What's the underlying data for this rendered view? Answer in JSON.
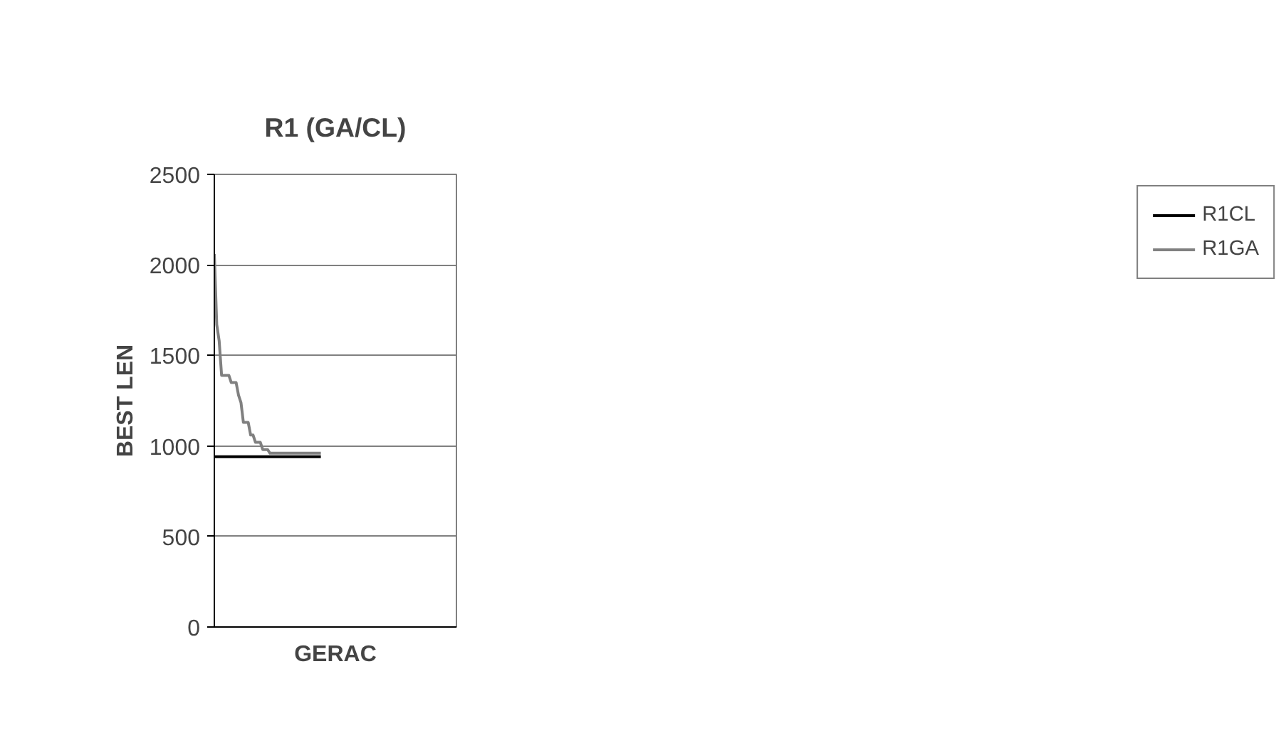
{
  "chart_data": {
    "type": "line",
    "title": "R1 (GA/CL)",
    "xlabel": "GERAC",
    "ylabel": "BEST LEN",
    "categories": [
      null,
      null,
      null,
      null,
      null,
      null,
      null,
      null,
      null,
      null,
      null,
      null,
      null,
      null,
      null,
      null,
      null,
      null,
      null,
      null,
      null,
      null,
      null,
      null,
      null,
      null,
      null,
      null,
      null,
      null,
      null,
      null,
      null,
      null,
      null,
      null,
      null,
      null,
      null,
      null,
      null,
      null,
      null,
      null,
      null,
      null,
      null,
      null,
      null,
      null,
      null,
      null,
      null,
      null,
      null,
      null,
      null,
      null,
      null,
      null,
      null,
      null,
      null,
      null,
      null,
      null,
      null,
      null,
      null,
      null,
      null,
      null,
      null,
      null,
      null,
      null,
      null,
      null,
      null,
      null,
      null,
      null,
      null,
      null,
      null,
      null,
      null,
      null,
      null,
      null,
      null,
      null,
      null,
      null,
      null,
      null,
      null,
      null,
      null,
      null,
      null
    ],
    "series": [
      {
        "name": "R1CL",
        "color": "#000000",
        "values": [
          940,
          940,
          940,
          940,
          940,
          940,
          940,
          940,
          940,
          940,
          940,
          940,
          940,
          940,
          940,
          940,
          940,
          940,
          940,
          940,
          940,
          940,
          940,
          940,
          940,
          940,
          940,
          940,
          940,
          940,
          940,
          940,
          940,
          940,
          940,
          940,
          940,
          940,
          940,
          940,
          940,
          940,
          940,
          940,
          940,
          null,
          null,
          null,
          null,
          null,
          null,
          null,
          null,
          null,
          null,
          null,
          null,
          null,
          null,
          null,
          null,
          null,
          null,
          null,
          null,
          null,
          null,
          null,
          null,
          null,
          null,
          null,
          null,
          null,
          null,
          null,
          null,
          null,
          null,
          null,
          null,
          null,
          null,
          null,
          null,
          null,
          null,
          null,
          null,
          null,
          null,
          null,
          null,
          null,
          null,
          null,
          null,
          null,
          null,
          null,
          null
        ]
      },
      {
        "name": "R1GA",
        "color": "#808080",
        "values": [
          2060,
          1670,
          1580,
          1390,
          1390,
          1390,
          1390,
          1350,
          1350,
          1350,
          1280,
          1240,
          1130,
          1130,
          1130,
          1060,
          1060,
          1020,
          1020,
          1020,
          980,
          980,
          980,
          960,
          960,
          960,
          960,
          960,
          960,
          960,
          960,
          960,
          960,
          960,
          960,
          960,
          960,
          960,
          960,
          960,
          960,
          960,
          960,
          960,
          960,
          null,
          null,
          null,
          null,
          null,
          null,
          null,
          null,
          null,
          null,
          null,
          null,
          null,
          null,
          null,
          null,
          null,
          null,
          null,
          null,
          null,
          null,
          null,
          null,
          null,
          null,
          null,
          null,
          null,
          null,
          null,
          null,
          null,
          null,
          null,
          null,
          null,
          null,
          null,
          null,
          null,
          null,
          null,
          null,
          null,
          null,
          null,
          null,
          null,
          null,
          null,
          null,
          null,
          null,
          null,
          null
        ]
      }
    ],
    "ylim": [
      0,
      2500
    ],
    "yticks": [
      0,
      500,
      1000,
      1500,
      2000,
      2500
    ],
    "grid": "y",
    "legend": "right",
    "tick_labels": "y"
  }
}
